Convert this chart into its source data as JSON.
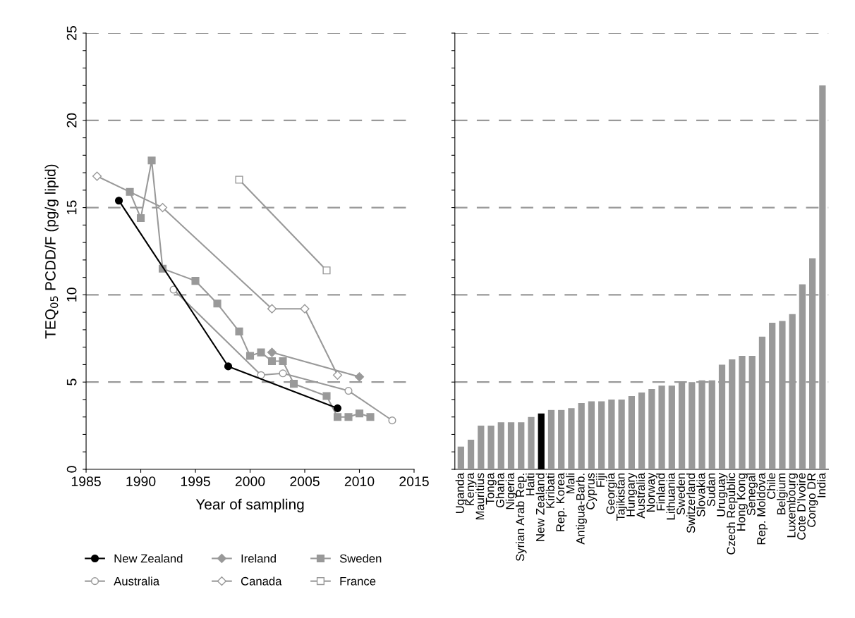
{
  "chart_data": [
    {
      "type": "line",
      "xlabel": "Year of sampling",
      "ylabel": "TEQ$_{05}$ PCDD/F (pg/g lipid)",
      "xlim": [
        1985,
        2015
      ],
      "xticks": [
        1985,
        1990,
        1995,
        2000,
        2005,
        2010,
        2015
      ],
      "ylim": [
        0,
        25
      ],
      "yticks": [
        0,
        {
          "value": 1,
          "label": null
        },
        {
          "value": 2,
          "label": null
        },
        {
          "value": 3,
          "label": null
        },
        {
          "value": 4,
          "label": null
        },
        5,
        {
          "value": 6,
          "label": null
        },
        {
          "value": 7,
          "label": null
        },
        {
          "value": 8,
          "label": null
        },
        {
          "value": 9,
          "label": null
        },
        10,
        {
          "value": 11,
          "label": null
        },
        {
          "value": 12,
          "label": null
        },
        {
          "value": 13,
          "label": null
        },
        {
          "value": 14,
          "label": null
        },
        15,
        {
          "value": 16,
          "label": null
        },
        {
          "value": 17,
          "label": null
        },
        {
          "value": 18,
          "label": null
        },
        {
          "value": 19,
          "label": null
        },
        20,
        {
          "value": 21,
          "label": null
        },
        {
          "value": 22,
          "label": null
        },
        {
          "value": 23,
          "label": null
        },
        {
          "value": 24,
          "label": null
        },
        25
      ],
      "grid": "y",
      "legend": "bottom",
      "line_style": "solid",
      "series": [
        {
          "name": "New Zealand",
          "color": "#000000",
          "marker": "circle",
          "x": [
            1988,
            1998,
            2008
          ],
          "values": [
            15.4,
            5.9,
            3.5
          ]
        },
        {
          "name": "Ireland",
          "color": "#999999",
          "marker": "diamond",
          "x": [
            2002,
            2010
          ],
          "values": [
            6.7,
            5.3
          ]
        },
        {
          "name": "Sweden",
          "color": "#999999",
          "marker": "square",
          "x": [
            1989,
            1990,
            1991,
            1992,
            1995,
            1997,
            1999,
            2000,
            2001,
            2002,
            2003,
            2004,
            2007,
            2008,
            2009,
            2010,
            2011
          ],
          "values": [
            15.9,
            14.4,
            17.7,
            11.5,
            10.8,
            9.5,
            7.9,
            6.5,
            6.7,
            6.2,
            6.2,
            4.9,
            4.2,
            3.0,
            3.0,
            3.2,
            3.0
          ]
        },
        {
          "name": "Australia",
          "color": "#999999",
          "marker": "circle",
          "x": [
            1993,
            2001,
            2003,
            2009,
            2013
          ],
          "values": [
            10.3,
            5.4,
            5.5,
            4.5,
            2.8
          ]
        },
        {
          "name": "Canada",
          "color": "#999999",
          "marker": "diamond",
          "x": [
            1986,
            1992,
            2002,
            2005,
            2008
          ],
          "values": [
            16.8,
            15.0,
            9.2,
            9.2,
            5.4
          ]
        },
        {
          "name": "France",
          "color": "#999999",
          "marker": "square",
          "x": [
            1999,
            2007
          ],
          "values": [
            16.6,
            11.4
          ]
        }
      ]
    },
    {
      "type": "bar",
      "ylim": [
        0,
        25
      ],
      "yticks": [
        0,
        {
          "value": 1,
          "label": null
        },
        {
          "value": 2,
          "label": null
        },
        {
          "value": 3,
          "label": null
        },
        {
          "value": 4,
          "label": null
        },
        5,
        {
          "value": 6,
          "label": null
        },
        {
          "value": 7,
          "label": null
        },
        {
          "value": 8,
          "label": null
        },
        {
          "value": 9,
          "label": null
        },
        10,
        {
          "value": 11,
          "label": null
        },
        {
          "value": 12,
          "label": null
        },
        {
          "value": 13,
          "label": null
        },
        {
          "value": 14,
          "label": null
        },
        15,
        {
          "value": 16,
          "label": null
        },
        {
          "value": 17,
          "label": null
        },
        {
          "value": 18,
          "label": null
        },
        {
          "value": 19,
          "label": null
        },
        20,
        {
          "value": 21,
          "label": null
        },
        {
          "value": 22,
          "label": null
        },
        {
          "value": 23,
          "label": null
        },
        {
          "value": 24,
          "label": null
        },
        25
      ],
      "grid": "y",
      "tick_labels": "x",
      "categories": [
        "Uganda",
        "Kenya",
        "Mauritius",
        "Tonga",
        "Ghana",
        "Nigeria",
        "Syrian Arab Rep.",
        "Haiti",
        "New Zealand",
        "Kiribati",
        "Rep. Korea",
        "Mali",
        "Antigua-Barb.",
        "Cyprus",
        "Fiji",
        "Georgia",
        "Tajikistan",
        "Hungary",
        "Australia",
        "Norway",
        "Finland",
        "Lithuania",
        "Sweden",
        "Switzerland",
        "Slovakia",
        "Sudan",
        "Uruguay",
        "Czech Republic",
        "Hong Kong",
        "Senegal",
        "Rep. Moldova",
        "Chile",
        "Belgium",
        "Luxembourg",
        "Cote D'Ivoire",
        "Congo DR",
        "India"
      ],
      "values": [
        1.3,
        1.7,
        2.5,
        2.5,
        2.7,
        2.7,
        2.7,
        3.0,
        3.2,
        3.4,
        3.4,
        3.5,
        3.8,
        3.9,
        3.9,
        4.0,
        4.0,
        4.2,
        4.4,
        4.6,
        4.8,
        4.8,
        5.0,
        5.0,
        5.1,
        5.1,
        6.0,
        6.3,
        6.5,
        6.5,
        7.6,
        8.4,
        8.5,
        8.9,
        10.6,
        12.1,
        22.0
      ],
      "colors": [
        "#999999",
        "#999999",
        "#999999",
        "#999999",
        "#999999",
        "#999999",
        "#999999",
        "#999999",
        "#000000",
        "#999999",
        "#999999",
        "#999999",
        "#999999",
        "#999999",
        "#999999",
        "#999999",
        "#999999",
        "#999999",
        "#999999",
        "#999999",
        "#999999",
        "#999999",
        "#999999",
        "#999999",
        "#999999",
        "#999999",
        "#999999",
        "#999999",
        "#999999",
        "#999999",
        "#999999",
        "#999999",
        "#999999",
        "#999999",
        "#999999",
        "#999999",
        "#999999"
      ]
    }
  ]
}
